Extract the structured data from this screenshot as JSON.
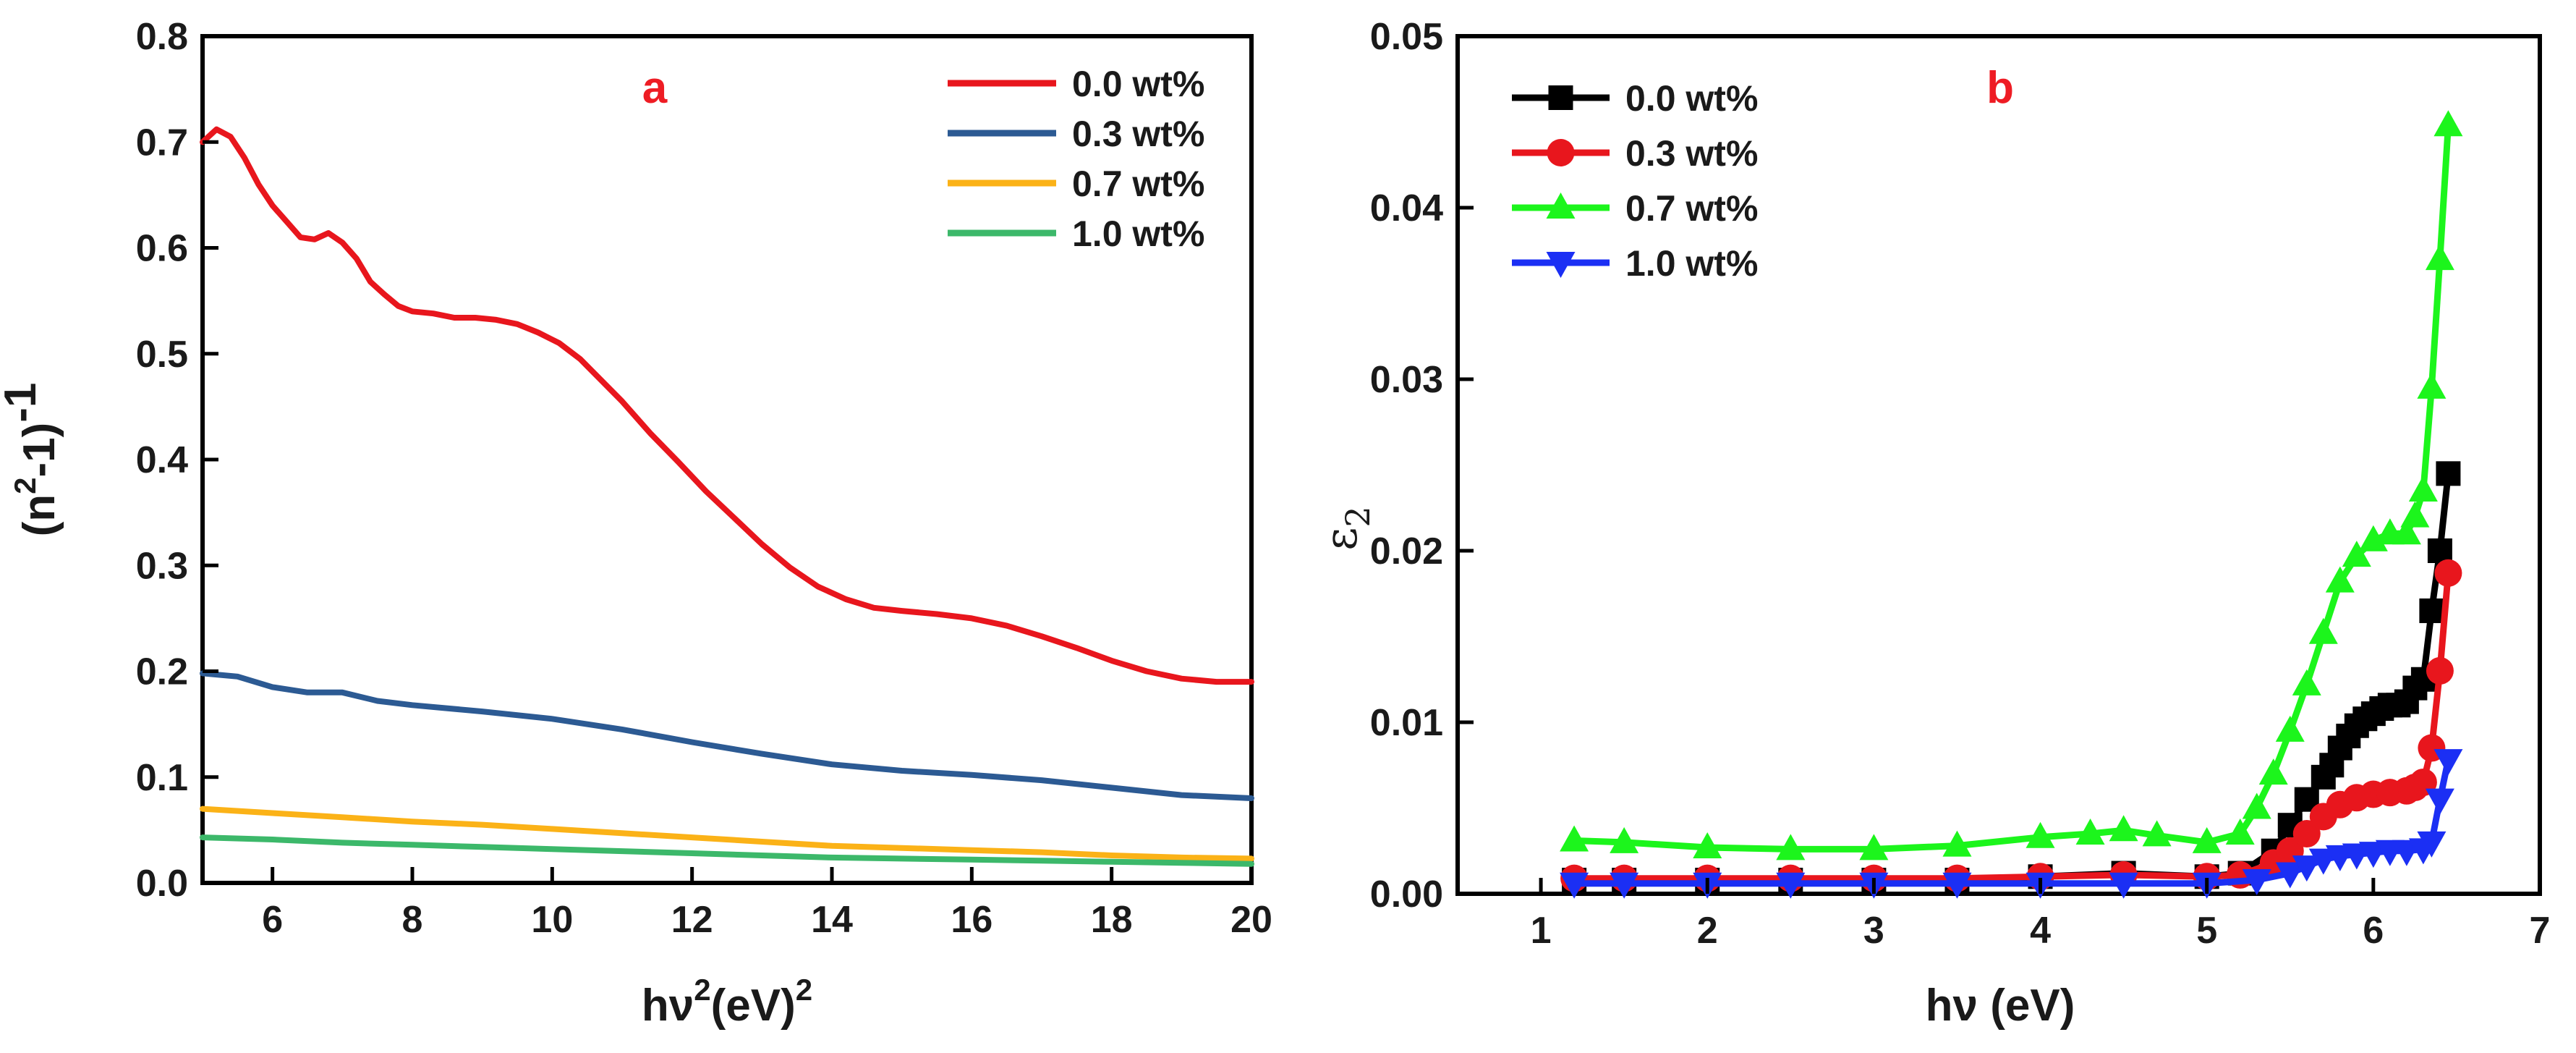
{
  "chart_data": [
    {
      "type": "line",
      "panel_label": "a",
      "title": "",
      "xlabel": "hν",
      "xlabel_sup": "2",
      "xlabel_tail": "(eV)",
      "xlabel_tail_sup": "2",
      "ylabel": "(n",
      "ylabel_sup": "2",
      "ylabel_mid": "-1)",
      "ylabel_tail": "-1",
      "xlim": [
        5,
        20
      ],
      "ylim": [
        0.0,
        0.8
      ],
      "xticks": [
        "6",
        "8",
        "10",
        "12",
        "14",
        "16",
        "18",
        "20"
      ],
      "yticks": [
        "0.0",
        "0.1",
        "0.2",
        "0.3",
        "0.4",
        "0.5",
        "0.6",
        "0.7",
        "0.8"
      ],
      "legend_position": "top-right",
      "series": [
        {
          "name": "0.0 wt%",
          "color": "#e8161d",
          "x": [
            5.0,
            5.2,
            5.4,
            5.6,
            5.8,
            6.0,
            6.2,
            6.4,
            6.6,
            6.8,
            7.0,
            7.2,
            7.4,
            7.6,
            7.8,
            8.0,
            8.3,
            8.6,
            8.9,
            9.2,
            9.5,
            9.8,
            10.1,
            10.4,
            10.7,
            11.0,
            11.4,
            11.8,
            12.2,
            12.6,
            13.0,
            13.4,
            13.8,
            14.2,
            14.6,
            15.0,
            15.5,
            16.0,
            16.5,
            17.0,
            17.5,
            18.0,
            18.5,
            19.0,
            19.5,
            20.0
          ],
          "values": [
            0.7,
            0.712,
            0.705,
            0.685,
            0.66,
            0.64,
            0.625,
            0.61,
            0.608,
            0.614,
            0.605,
            0.59,
            0.568,
            0.556,
            0.545,
            0.54,
            0.538,
            0.534,
            0.534,
            0.532,
            0.528,
            0.52,
            0.51,
            0.495,
            0.475,
            0.455,
            0.425,
            0.398,
            0.37,
            0.345,
            0.32,
            0.298,
            0.28,
            0.268,
            0.26,
            0.257,
            0.254,
            0.25,
            0.243,
            0.233,
            0.222,
            0.21,
            0.2,
            0.193,
            0.19,
            0.19
          ]
        },
        {
          "name": "0.3 wt%",
          "color": "#2c5a93",
          "x": [
            5.0,
            5.5,
            6.0,
            6.5,
            7.0,
            7.5,
            8.0,
            9.0,
            10.0,
            11.0,
            12.0,
            13.0,
            14.0,
            15.0,
            16.0,
            17.0,
            18.0,
            19.0,
            20.0
          ],
          "values": [
            0.198,
            0.195,
            0.185,
            0.18,
            0.18,
            0.172,
            0.168,
            0.162,
            0.155,
            0.145,
            0.133,
            0.122,
            0.112,
            0.106,
            0.102,
            0.097,
            0.09,
            0.083,
            0.08
          ]
        },
        {
          "name": "0.7 wt%",
          "color": "#fbb217",
          "x": [
            5.0,
            6.0,
            7.0,
            8.0,
            9.0,
            10.0,
            11.0,
            12.0,
            13.0,
            14.0,
            15.0,
            16.0,
            17.0,
            18.0,
            19.0,
            20.0
          ],
          "values": [
            0.07,
            0.066,
            0.062,
            0.058,
            0.055,
            0.051,
            0.047,
            0.043,
            0.039,
            0.035,
            0.033,
            0.031,
            0.029,
            0.026,
            0.024,
            0.023
          ]
        },
        {
          "name": "1.0 wt%",
          "color": "#3cb86a",
          "x": [
            5.0,
            6.0,
            7.0,
            8.0,
            9.0,
            10.0,
            11.0,
            12.0,
            13.0,
            14.0,
            15.0,
            16.0,
            17.0,
            18.0,
            19.0,
            20.0
          ],
          "values": [
            0.043,
            0.041,
            0.038,
            0.036,
            0.034,
            0.032,
            0.03,
            0.028,
            0.026,
            0.024,
            0.023,
            0.022,
            0.021,
            0.02,
            0.019,
            0.018
          ]
        }
      ]
    },
    {
      "type": "line",
      "panel_label": "b",
      "title": "",
      "xlabel": "hν (eV)",
      "ylabel": "ε",
      "ylabel_sub": "2",
      "xlim": [
        0.5,
        7
      ],
      "ylim": [
        0.0,
        0.05
      ],
      "xticks": [
        "1",
        "2",
        "3",
        "4",
        "5",
        "6",
        "7"
      ],
      "yticks": [
        "0.00",
        "0.01",
        "0.02",
        "0.03",
        "0.04",
        "0.05"
      ],
      "legend_position": "top-left",
      "series": [
        {
          "name": "0.0 wt%",
          "color": "#000000",
          "marker": "square",
          "x": [
            1.2,
            1.5,
            2.0,
            2.5,
            3.0,
            3.5,
            4.0,
            4.5,
            5.0,
            5.2,
            5.4,
            5.5,
            5.6,
            5.7,
            5.75,
            5.8,
            5.85,
            5.9,
            5.95,
            6.0,
            6.05,
            6.1,
            6.15,
            6.2,
            6.25,
            6.3,
            6.35,
            6.4,
            6.45
          ],
          "values": [
            0.0008,
            0.0008,
            0.0008,
            0.0008,
            0.0008,
            0.0008,
            0.001,
            0.0012,
            0.001,
            0.0012,
            0.0025,
            0.004,
            0.0055,
            0.0068,
            0.0075,
            0.0085,
            0.0092,
            0.0098,
            0.0102,
            0.0105,
            0.0108,
            0.011,
            0.011,
            0.0112,
            0.012,
            0.0125,
            0.0165,
            0.02,
            0.0245
          ]
        },
        {
          "name": "0.3 wt%",
          "color": "#e8161d",
          "marker": "circle",
          "x": [
            1.2,
            1.5,
            2.0,
            2.5,
            3.0,
            3.5,
            4.0,
            4.5,
            5.0,
            5.2,
            5.4,
            5.5,
            5.6,
            5.7,
            5.8,
            5.9,
            6.0,
            6.1,
            6.2,
            6.25,
            6.3,
            6.35,
            6.4,
            6.45
          ],
          "values": [
            0.0009,
            0.0009,
            0.0009,
            0.0009,
            0.0009,
            0.0009,
            0.001,
            0.0011,
            0.001,
            0.0011,
            0.0018,
            0.0025,
            0.0035,
            0.0045,
            0.0052,
            0.0056,
            0.0058,
            0.0059,
            0.006,
            0.0062,
            0.0065,
            0.0085,
            0.013,
            0.0187
          ]
        },
        {
          "name": "0.7 wt%",
          "color": "#1cf51c",
          "marker": "triangle-up",
          "x": [
            1.2,
            1.5,
            2.0,
            2.5,
            3.0,
            3.5,
            4.0,
            4.3,
            4.5,
            4.7,
            5.0,
            5.2,
            5.3,
            5.4,
            5.5,
            5.6,
            5.7,
            5.8,
            5.9,
            6.0,
            6.1,
            6.2,
            6.25,
            6.3,
            6.35,
            6.4,
            6.45
          ],
          "values": [
            0.0031,
            0.003,
            0.0027,
            0.0026,
            0.0026,
            0.0028,
            0.0033,
            0.0035,
            0.0037,
            0.0034,
            0.003,
            0.0035,
            0.005,
            0.007,
            0.0095,
            0.0122,
            0.0152,
            0.0182,
            0.0197,
            0.0206,
            0.021,
            0.021,
            0.022,
            0.0235,
            0.0295,
            0.037,
            0.0448
          ]
        },
        {
          "name": "1.0 wt%",
          "color": "#1b2ff4",
          "marker": "triangle-down",
          "x": [
            1.2,
            1.5,
            2.0,
            2.5,
            3.0,
            3.5,
            4.0,
            4.5,
            5.0,
            5.3,
            5.5,
            5.6,
            5.7,
            5.8,
            5.9,
            6.0,
            6.1,
            6.2,
            6.3,
            6.35,
            6.4,
            6.45
          ],
          "values": [
            0.0006,
            0.0006,
            0.0006,
            0.0006,
            0.0006,
            0.0006,
            0.0006,
            0.0006,
            0.0006,
            0.0008,
            0.0012,
            0.0016,
            0.002,
            0.0022,
            0.0023,
            0.0024,
            0.0025,
            0.0025,
            0.0026,
            0.003,
            0.0055,
            0.0078
          ]
        }
      ]
    }
  ]
}
